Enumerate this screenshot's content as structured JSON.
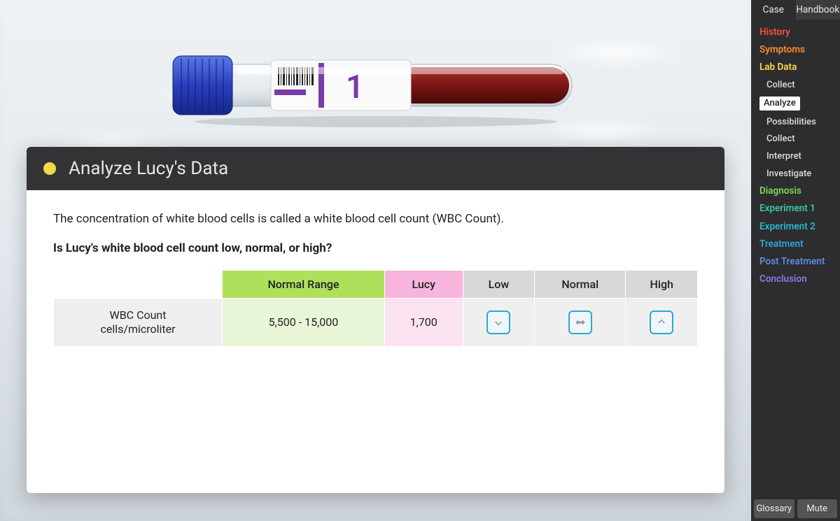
{
  "card": {
    "title": "Analyze Lucy's Data",
    "dot_color": "#f2d84b",
    "intro": "The concentration of white blood cells is called a white blood cell count (WBC Count).",
    "question": "Is Lucy's white blood cell count low, normal, or high?"
  },
  "table": {
    "headers": {
      "normal_range": "Normal Range",
      "lucy": "Lucy",
      "low": "Low",
      "normal": "Normal",
      "high": "High"
    },
    "row": {
      "label_line1": "WBC Count",
      "label_line2": "cells/microliter",
      "normal_range_value": "5,500 - 15,000",
      "lucy_value": "1,700"
    },
    "colors": {
      "normal_header_bg": "#aee05c",
      "lucy_header_bg": "#f7b4dc",
      "choice_header_bg": "#d8d8d8",
      "row_label_bg": "#efefef",
      "normal_cell_bg": "#e9f6d8",
      "lucy_cell_bg": "#fbe3f1",
      "choice_cell_bg": "#efefef",
      "choice_button_border": "#2aa8d8",
      "choice_arrow_fill": "#8f9aa1"
    }
  },
  "sidebar": {
    "tabs": {
      "case": "Case",
      "handbook": "Handbook",
      "active": "case"
    },
    "sections": [
      {
        "label": "History",
        "color": "#ff4d3d"
      },
      {
        "label": "Symptoms",
        "color": "#ff8a2a"
      },
      {
        "label": "Lab Data",
        "color": "#f2d84b",
        "children": [
          {
            "label": "Collect",
            "active": false
          },
          {
            "label": "Analyze",
            "active": true
          },
          {
            "label": "Possibilities",
            "active": false
          },
          {
            "label": "Collect",
            "active": false
          },
          {
            "label": "Interpret",
            "active": false
          },
          {
            "label": "Investigate",
            "active": false
          }
        ]
      },
      {
        "label": "Diagnosis",
        "color": "#7fd84f"
      },
      {
        "label": "Experiment 1",
        "color": "#35c9a0"
      },
      {
        "label": "Experiment 2",
        "color": "#2ab8c9"
      },
      {
        "label": "Treatment",
        "color": "#2aa8d8"
      },
      {
        "label": "Post Treatment",
        "color": "#5a8de6"
      },
      {
        "label": "Conclusion",
        "color": "#8a7ae6"
      }
    ],
    "footer": {
      "glossary": "Glossary",
      "mute": "Mute"
    }
  },
  "tube": {
    "cap_color": "#2a3fbf",
    "cap_highlight": "#5a78e6",
    "blood_color": "#7a1515",
    "label_number": "1",
    "label_number_color": "#7a3aa8"
  }
}
